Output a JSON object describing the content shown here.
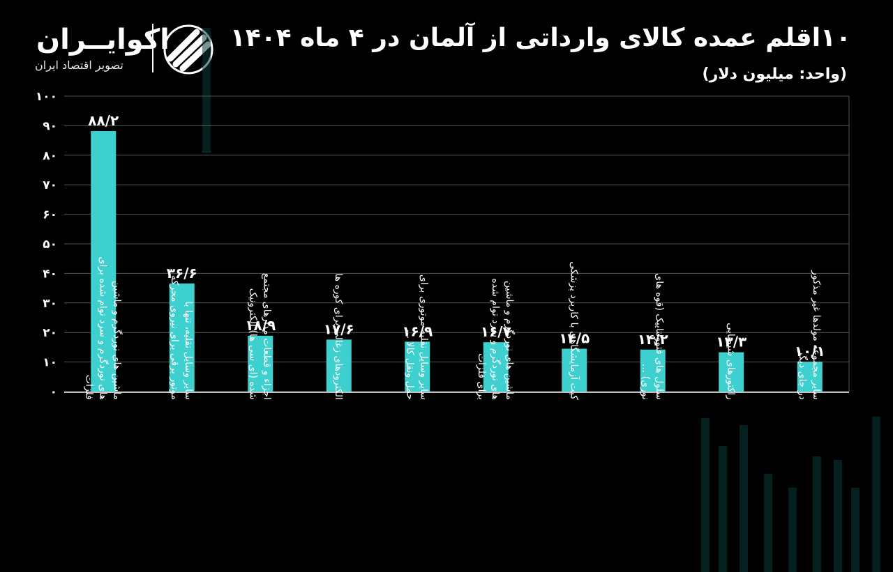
{
  "header": {
    "title": "۱۰اقلم عمده کالای وارداتی از آلمان در ۴ ماه ۱۴۰۴",
    "subtitle": "(واحد: میلیون دلار)"
  },
  "brand": {
    "name": "اکوایــران",
    "tagline": "تصویر اقتصاد ایران"
  },
  "colors": {
    "bar": "#3ecfcf",
    "grid": "#555555",
    "background": "#000000",
    "text": "#ffffff"
  },
  "chart_data": {
    "type": "bar",
    "title": "۱۰اقلم عمده کالای وارداتی از آلمان در ۴ ماه ۱۴۰۴",
    "ylabel": "(واحد: میلیون دلار)",
    "xlabel": "",
    "ylim": [
      0,
      100
    ],
    "yticks": [
      0,
      10,
      20,
      30,
      40,
      50,
      60,
      70,
      80,
      90,
      100
    ],
    "ytick_labels": [
      "۰",
      "۱۰",
      "۲۰",
      "۳۰",
      "۴۰",
      "۵۰",
      "۶۰",
      "۷۰",
      "۸۰",
      "۹۰",
      "۱۰۰"
    ],
    "grid": true,
    "categories": [
      [
        "ماشین های نوردگرم و ماشین",
        "های نوردگرم و سرد توام شده برای",
        "فلزات"
      ],
      [
        "سایر وسایل نقلیه، تنها با",
        "موتور برقی برای نیروی محرکه"
      ],
      [
        "اجزاء و قطعات مدارهای مجتمع",
        "شده (ای سی ها) الکترونیک"
      ],
      [
        "الکترودهای زغالی برای کوره ها"
      ],
      [
        "سایر وسایل نقلیه موتوری برای",
        "حمل ونقل کالا ..."
      ],
      [
        "ماشین های نوردگرم و ماشین",
        "های نوردگرم و سرد توام شده",
        "برای فلزات"
      ],
      [
        "کیت آزمایشگاهی با کاربرد پزشکی"
      ],
      [
        "سلول های فتوولتاییک (قوه های",
        "نوری) ..."
      ],
      [
        "راکتورهای شیمیایی"
      ],
      [
        "سایر مجموعه مولدها غیر مذکور",
        "در جای دیگر"
      ]
    ],
    "values": [
      88.2,
      36.6,
      18.9,
      17.6,
      16.9,
      16.7,
      14.5,
      14.2,
      13.3,
      10.1
    ],
    "value_labels": [
      "۸۸/۲",
      "۳۶/۶",
      "۱۸/۹",
      "۱۷/۶",
      "۱۶/۹",
      "۱۶/۷",
      "۱۴/۵",
      "۱۴/۲",
      "۱۳/۳",
      "۱۰/۱"
    ]
  }
}
